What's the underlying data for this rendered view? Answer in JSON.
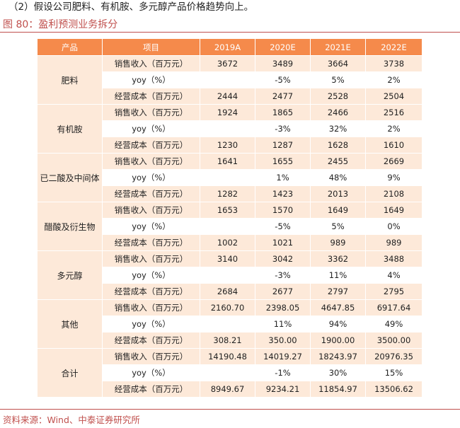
{
  "intro_text": "（2）假设公司肥料、有机胺、多元醇产品价格趋势向上。",
  "figure_title": "图 80：盈利预测业务拆分",
  "table": {
    "headers": [
      "产品",
      "项目",
      "2019A",
      "2020E",
      "2021E",
      "2022E"
    ],
    "groups": [
      {
        "product": "肥料",
        "rows": [
          {
            "item": "销售收入（百万元）",
            "values": [
              "3672",
              "3489",
              "3664",
              "3738"
            ]
          },
          {
            "item": "yoy（%）",
            "values": [
              "",
              "-5%",
              "5%",
              "2%"
            ]
          },
          {
            "item": "经营成本（百万元）",
            "values": [
              "2444",
              "2477",
              "2528",
              "2504"
            ]
          }
        ]
      },
      {
        "product": "有机胺",
        "rows": [
          {
            "item": "销售收入（百万元）",
            "values": [
              "1924",
              "1865",
              "2466",
              "2516"
            ]
          },
          {
            "item": "yoy（%）",
            "values": [
              "",
              "-3%",
              "32%",
              "2%"
            ]
          },
          {
            "item": "经营成本（百万元）",
            "values": [
              "1230",
              "1287",
              "1628",
              "1610"
            ]
          }
        ]
      },
      {
        "product": "已二酸及中间体",
        "rows": [
          {
            "item": "销售收入（百万元）",
            "values": [
              "1641",
              "1655",
              "2455",
              "2669"
            ]
          },
          {
            "item": "yoy（%）",
            "values": [
              "",
              "1%",
              "48%",
              "9%"
            ]
          },
          {
            "item": "经营成本（百万元）",
            "values": [
              "1282",
              "1423",
              "2013",
              "2108"
            ]
          }
        ]
      },
      {
        "product": "醋酸及衍生物",
        "rows": [
          {
            "item": "销售收入（百万元）",
            "values": [
              "1653",
              "1570",
              "1649",
              "1649"
            ]
          },
          {
            "item": "yoy（%）",
            "values": [
              "",
              "-5%",
              "5%",
              "0%"
            ]
          },
          {
            "item": "经营成本（百万元）",
            "values": [
              "1002",
              "1021",
              "989",
              "989"
            ]
          }
        ]
      },
      {
        "product": "多元醇",
        "rows": [
          {
            "item": "销售收入（百万元）",
            "values": [
              "3140",
              "3042",
              "3362",
              "3488"
            ]
          },
          {
            "item": "yoy（%）",
            "values": [
              "",
              "-3%",
              "11%",
              "4%"
            ]
          },
          {
            "item": "经营成本（百万元）",
            "values": [
              "2684",
              "2677",
              "2797",
              "2795"
            ]
          }
        ]
      },
      {
        "product": "其他",
        "rows": [
          {
            "item": "销售收入（百万元）",
            "values": [
              "2160.70",
              "2398.05",
              "4647.85",
              "6917.64"
            ]
          },
          {
            "item": "yoy（%）",
            "values": [
              "",
              "11%",
              "94%",
              "49%"
            ]
          },
          {
            "item": "经营成本（百万元）",
            "values": [
              "308.21",
              "350.00",
              "1900.00",
              "3500.00"
            ]
          }
        ]
      },
      {
        "product": "合计",
        "rows": [
          {
            "item": "销售收入（百万元）",
            "values": [
              "14190.48",
              "14019.27",
              "18243.97",
              "20976.35"
            ]
          },
          {
            "item": "yoy（%）",
            "values": [
              "",
              "-1%",
              "30%",
              "15%"
            ]
          },
          {
            "item": "经营成本（百万元）",
            "values": [
              "8949.67",
              "9234.21",
              "11854.97",
              "13506.62"
            ]
          }
        ]
      }
    ]
  },
  "source_text": "资料来源：Wind、中泰证券研究所",
  "colors": {
    "header_bg": "#f58a4b",
    "band_bg": "#fde9d9",
    "accent": "#c0504d"
  }
}
